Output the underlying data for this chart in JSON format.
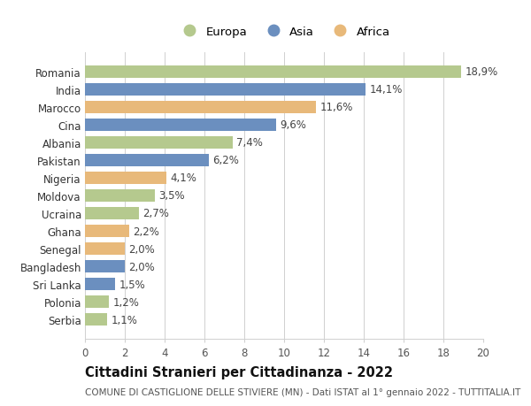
{
  "countries": [
    "Romania",
    "India",
    "Marocco",
    "Cina",
    "Albania",
    "Pakistan",
    "Nigeria",
    "Moldova",
    "Ucraina",
    "Ghana",
    "Senegal",
    "Bangladesh",
    "Sri Lanka",
    "Polonia",
    "Serbia"
  ],
  "values": [
    18.9,
    14.1,
    11.6,
    9.6,
    7.4,
    6.2,
    4.1,
    3.5,
    2.7,
    2.2,
    2.0,
    2.0,
    1.5,
    1.2,
    1.1
  ],
  "labels": [
    "18,9%",
    "14,1%",
    "11,6%",
    "9,6%",
    "7,4%",
    "6,2%",
    "4,1%",
    "3,5%",
    "2,7%",
    "2,2%",
    "2,0%",
    "2,0%",
    "1,5%",
    "1,2%",
    "1,1%"
  ],
  "continents": [
    "Europa",
    "Asia",
    "Africa",
    "Asia",
    "Europa",
    "Asia",
    "Africa",
    "Europa",
    "Europa",
    "Africa",
    "Africa",
    "Asia",
    "Asia",
    "Europa",
    "Europa"
  ],
  "colors": {
    "Europa": "#b5c98e",
    "Asia": "#6b8fbf",
    "Africa": "#e8b97a"
  },
  "xlim": [
    0,
    20
  ],
  "xticks": [
    0,
    2,
    4,
    6,
    8,
    10,
    12,
    14,
    16,
    18,
    20
  ],
  "title": "Cittadini Stranieri per Cittadinanza - 2022",
  "subtitle": "COMUNE DI CASTIGLIONE DELLE STIVIERE (MN) - Dati ISTAT al 1° gennaio 2022 - TUTTITALIA.IT",
  "bg_color": "#ffffff",
  "grid_color": "#d0d0d0",
  "bar_height": 0.72,
  "label_fontsize": 8.5,
  "title_fontsize": 10.5,
  "subtitle_fontsize": 7.5,
  "ytick_fontsize": 8.5,
  "xtick_fontsize": 8.5,
  "legend_fontsize": 9.5
}
